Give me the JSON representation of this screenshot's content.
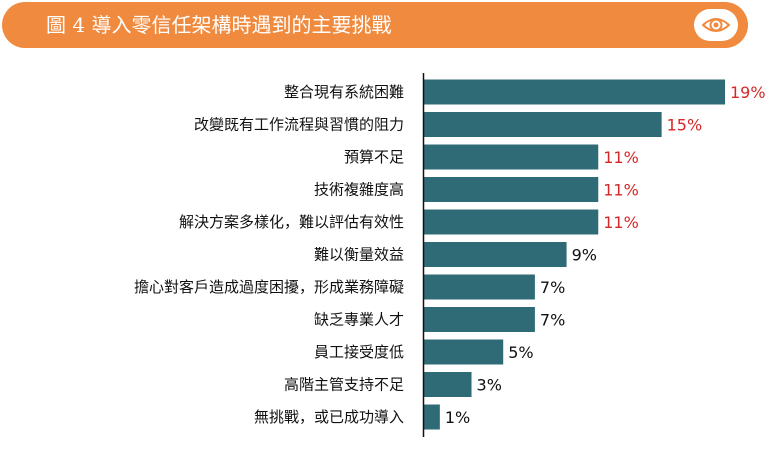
{
  "header": {
    "title": "圖 4 導入零信任架構時遇到的主要挑戰",
    "view_icon": "eye-icon"
  },
  "colors": {
    "header_bg": "#F08A3E",
    "bar": "#2F6B77",
    "highlight_label": "#D62828",
    "normal_label": "#111111"
  },
  "chart_data": {
    "type": "bar",
    "orientation": "horizontal",
    "title": "圖 4 導入零信任架構時遇到的主要挑戰",
    "xlabel": "",
    "ylabel": "",
    "xlim": [
      0,
      19
    ],
    "grid": false,
    "categories": [
      "整合現有系統困難",
      "改變既有工作流程與習慣的阻力",
      "預算不足",
      "技術複雜度高",
      "解決方案多樣化，難以評估有效性",
      "難以衡量效益",
      "擔心對客戶造成過度困擾，形成業務障礙",
      "缺乏專業人才",
      "員工接受度低",
      "高階主管支持不足",
      "無挑戰，或已成功導入"
    ],
    "values": [
      19,
      15,
      11,
      11,
      11,
      9,
      7,
      7,
      5,
      3,
      1
    ],
    "value_labels": [
      "19%",
      "15%",
      "11%",
      "11%",
      "11%",
      "9%",
      "7%",
      "7%",
      "5%",
      "3%",
      "1%"
    ],
    "highlighted": [
      true,
      true,
      true,
      true,
      true,
      false,
      false,
      false,
      false,
      false,
      false
    ]
  }
}
